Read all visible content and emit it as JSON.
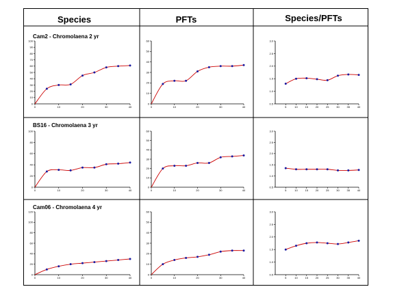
{
  "headers": [
    "Species",
    "PFTs",
    "Species/PFTs"
  ],
  "row_titles": [
    "Cam2 - Chromolaena 2 yr",
    "BS16 - Chromolaena 3 yr",
    "Cam06 - Chromolaena 4 yr"
  ],
  "colors": {
    "line": "#cc0000",
    "marker": "#1a1aa0",
    "axis": "#000000",
    "grid_border": "#000000"
  },
  "chart_data": [
    {
      "type": "line",
      "row": 0,
      "col": 0,
      "title": "Cam2 - Chromolaena 2 yr",
      "x": [
        0,
        5,
        10,
        15,
        20,
        25,
        30,
        35,
        40
      ],
      "y": [
        0,
        24,
        30,
        31,
        45,
        50,
        58,
        60,
        61
      ],
      "ylim": [
        0,
        100
      ],
      "yticks": [
        0,
        10,
        20,
        30,
        40,
        50,
        60,
        70,
        80,
        90,
        100
      ],
      "xticks": [
        0,
        10,
        20,
        30,
        40
      ],
      "xlim": [
        0,
        40
      ],
      "xlabel": "",
      "ylabel": ""
    },
    {
      "type": "line",
      "row": 0,
      "col": 1,
      "title": "",
      "x": [
        0,
        5,
        10,
        15,
        20,
        25,
        30,
        35,
        40
      ],
      "y": [
        0,
        19,
        22,
        22,
        31,
        35,
        36,
        36,
        37
      ],
      "ylim": [
        0,
        60
      ],
      "yticks": [
        0,
        10,
        20,
        30,
        40,
        50,
        60
      ],
      "xticks": [
        0,
        10,
        20,
        30,
        40
      ],
      "xlim": [
        0,
        40
      ],
      "xlabel": "",
      "ylabel": ""
    },
    {
      "type": "line",
      "row": 0,
      "col": 2,
      "title": "",
      "x": [
        5,
        10,
        15,
        20,
        25,
        30,
        35,
        40
      ],
      "y": [
        1.3,
        1.5,
        1.52,
        1.48,
        1.44,
        1.62,
        1.67,
        1.65
      ],
      "ylim": [
        0.5,
        3.0
      ],
      "yticks": [
        0.5,
        1.0,
        1.5,
        2.0,
        2.5,
        3.0
      ],
      "xticks": [
        5,
        10,
        15,
        20,
        25,
        30,
        35,
        40
      ],
      "xlim": [
        0,
        40
      ],
      "xlabel": "",
      "ylabel": ""
    },
    {
      "type": "line",
      "row": 1,
      "col": 0,
      "title": "BS16 - Chromolaena 3 yr",
      "x": [
        0,
        5,
        10,
        15,
        20,
        25,
        30,
        35,
        40
      ],
      "y": [
        0,
        28,
        31,
        30,
        35,
        35,
        41,
        42,
        44
      ],
      "ylim": [
        0,
        100
      ],
      "yticks": [
        0,
        20,
        40,
        60,
        80,
        100
      ],
      "xticks": [
        0,
        10,
        20,
        30,
        40
      ],
      "xlim": [
        0,
        40
      ],
      "xlabel": "",
      "ylabel": ""
    },
    {
      "type": "line",
      "row": 1,
      "col": 1,
      "title": "",
      "x": [
        0,
        5,
        10,
        15,
        20,
        25,
        30,
        35,
        40
      ],
      "y": [
        0,
        20,
        23,
        23,
        26,
        26,
        32,
        33,
        34
      ],
      "ylim": [
        0,
        60
      ],
      "yticks": [
        0,
        10,
        20,
        30,
        40,
        50,
        60
      ],
      "xticks": [
        0,
        10,
        20,
        30,
        40
      ],
      "xlim": [
        0,
        40
      ],
      "xlabel": "",
      "ylabel": ""
    },
    {
      "type": "line",
      "row": 1,
      "col": 2,
      "title": "",
      "x": [
        5,
        10,
        15,
        20,
        25,
        30,
        35,
        40
      ],
      "y": [
        1.35,
        1.3,
        1.3,
        1.3,
        1.3,
        1.25,
        1.25,
        1.27
      ],
      "ylim": [
        0.5,
        3.0
      ],
      "yticks": [
        0.5,
        1.0,
        1.5,
        2.0,
        2.5,
        3.0
      ],
      "xticks": [
        5,
        10,
        15,
        20,
        25,
        30,
        35,
        40
      ],
      "xlim": [
        0,
        40
      ],
      "xlabel": "",
      "ylabel": ""
    },
    {
      "type": "line",
      "row": 2,
      "col": 0,
      "title": "Cam06 - Chromolaena 4 yr",
      "x": [
        0,
        5,
        10,
        15,
        20,
        25,
        30,
        35,
        40
      ],
      "y": [
        0,
        10,
        16,
        20,
        22,
        24,
        26,
        28,
        30
      ],
      "ylim": [
        0,
        120
      ],
      "yticks": [
        0,
        20,
        40,
        60,
        80,
        100,
        120
      ],
      "xticks": [
        0,
        10,
        20,
        30,
        40
      ],
      "xlim": [
        0,
        40
      ],
      "xlabel": "",
      "ylabel": ""
    },
    {
      "type": "line",
      "row": 2,
      "col": 1,
      "title": "",
      "x": [
        0,
        5,
        10,
        15,
        20,
        25,
        30,
        35,
        40
      ],
      "y": [
        0,
        10,
        14,
        16,
        17,
        19,
        22,
        23,
        23
      ],
      "ylim": [
        0,
        60
      ],
      "yticks": [
        0,
        10,
        20,
        30,
        40,
        50,
        60
      ],
      "xticks": [
        0,
        10,
        20,
        30,
        40
      ],
      "xlim": [
        0,
        40
      ],
      "xlabel": "",
      "ylabel": ""
    },
    {
      "type": "line",
      "row": 2,
      "col": 2,
      "title": "",
      "x": [
        5,
        10,
        15,
        20,
        25,
        30,
        35,
        40
      ],
      "y": [
        1.5,
        1.65,
        1.75,
        1.78,
        1.75,
        1.72,
        1.78,
        1.85
      ],
      "ylim": [
        0.5,
        3.0
      ],
      "yticks": [
        0.5,
        1.0,
        1.5,
        2.0,
        2.5,
        3.0
      ],
      "xticks": [
        5,
        10,
        15,
        20,
        25,
        30,
        35,
        40
      ],
      "xlim": [
        0,
        40
      ],
      "xlabel": "",
      "ylabel": ""
    }
  ]
}
